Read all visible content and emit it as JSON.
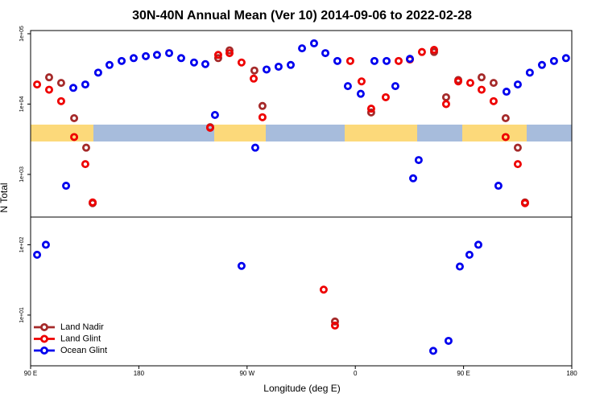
{
  "chart_data": {
    "type": "scatter",
    "title": "30N-40N Annual Mean (Ver 10)   2014-09-06 to 2022-02-28",
    "xlabel": "Longitude (deg E)",
    "ylabel": "N Total",
    "xlim": [
      90,
      540
    ],
    "xticks": [
      {
        "value": 90,
        "label": "90 E"
      },
      180,
      {
        "value": 270,
        "label": "90 W"
      },
      0,
      {
        "value": 450,
        "label": "90 E"
      },
      180
    ],
    "ylim": [
      1.9,
      111000
    ],
    "log_y": true,
    "yticks": [
      {
        "value": 100000,
        "label": "1e+05"
      },
      {
        "value": 10000,
        "label": "1e+04"
      },
      {
        "value": 1000,
        "label": "1e+03"
      },
      {
        "value": 100,
        "label": "1e+02"
      },
      {
        "value": 10,
        "label": "1e+01"
      }
    ],
    "legend": "bottom-left",
    "series": [
      {
        "name": "Land Nadir",
        "color": "#a52a2a",
        "x": [
          105.4,
          115.4,
          126.2,
          136.2,
          141.6,
          239.3,
          246,
          255.4,
          276.1,
          282.8,
          343.1,
          373.2,
          425.5,
          435.5,
          445.6,
          465,
          475,
          485,
          495.1,
          501.1
        ],
        "values": [
          24000,
          20000,
          6300,
          2400,
          390,
          4700,
          45000,
          58000,
          30000,
          9400,
          8.1,
          7600,
          55000,
          12500,
          22000,
          24000,
          20000,
          6300,
          2400,
          400
        ]
      },
      {
        "name": "Land Glint",
        "color": "#ee0000",
        "x": [
          95.4,
          105.4,
          115.4,
          126.2,
          135.5,
          141.6,
          239.3,
          246,
          255.4,
          265.4,
          275.5,
          282.8,
          333.7,
          343.1,
          355.8,
          365.2,
          373.2,
          385.3,
          396,
          405.4,
          415.4,
          425.5,
          435.5,
          445.6,
          455.6,
          465,
          475,
          485,
          495.1,
          501.1
        ],
        "values": [
          19000,
          16000,
          11000,
          3400,
          1400,
          400,
          4600,
          50000,
          53000,
          39000,
          23000,
          6500,
          23,
          7.1,
          41000,
          21000,
          8600,
          12500,
          41000,
          43000,
          55000,
          59000,
          10000,
          21000,
          20000,
          16000,
          11000,
          3400,
          1400,
          390
        ]
      },
      {
        "name": "Ocean Glint",
        "color": "#0000ee",
        "x": [
          95.4,
          102.7,
          119.5,
          125.5,
          135.5,
          146.2,
          155.6,
          165.7,
          175.7,
          185.8,
          195.1,
          205.2,
          215.2,
          225.9,
          235.3,
          243.3,
          265.4,
          276.8,
          286.2,
          296.2,
          306.3,
          315.7,
          325.7,
          335.1,
          345.1,
          353.8,
          364.5,
          375.9,
          386,
          393.3,
          405.4,
          408.1,
          412.7,
          424.8,
          437.5,
          446.9,
          454.9,
          462.3,
          479,
          485.7,
          495.1,
          505.1,
          515.2,
          525.2,
          535.2
        ],
        "values": [
          72,
          100,
          690,
          17000,
          19000,
          28000,
          36000,
          41000,
          45000,
          48000,
          50000,
          53000,
          45000,
          39000,
          37000,
          7000,
          50,
          2400,
          31000,
          34000,
          36000,
          62000,
          73000,
          53000,
          41000,
          18000,
          14000,
          41000,
          41000,
          18000,
          44000,
          880,
          1600,
          3.1,
          4.3,
          49,
          72,
          100,
          690,
          15000,
          19000,
          28000,
          36000,
          41000,
          45000
        ]
      }
    ]
  }
}
